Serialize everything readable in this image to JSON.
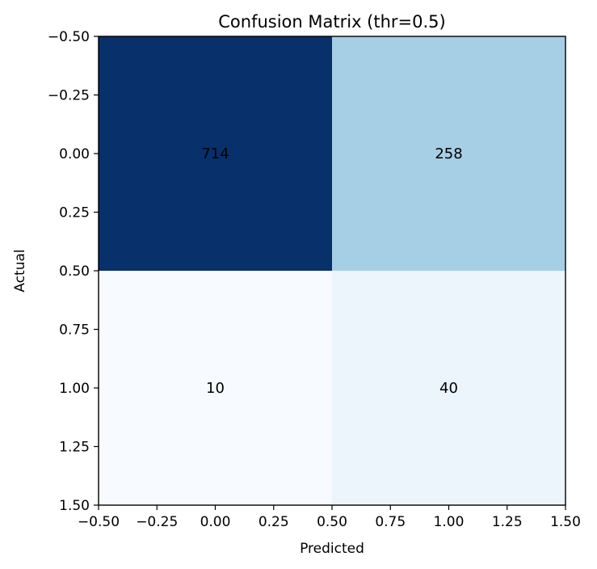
{
  "chart_data": {
    "type": "heatmap",
    "title": "Confusion Matrix (thr=0.5)",
    "xlabel": "Predicted",
    "ylabel": "Actual",
    "matrix": [
      [
        714,
        258
      ],
      [
        10,
        40
      ]
    ],
    "cell_colors": [
      [
        "#08306b",
        "#a6cee4"
      ],
      [
        "#f7fbff",
        "#ecf4fc"
      ]
    ],
    "xlim": [
      -0.5,
      1.5
    ],
    "ylim": [
      -0.5,
      1.5
    ],
    "y_inverted": true,
    "xticks": [
      "−0.50",
      "−0.25",
      "0.00",
      "0.25",
      "0.50",
      "0.75",
      "1.00",
      "1.25",
      "1.50"
    ],
    "yticks": [
      "−0.50",
      "−0.25",
      "0.00",
      "0.25",
      "0.50",
      "0.75",
      "1.00",
      "1.25",
      "1.50"
    ],
    "grid": false,
    "colormap": "Blues"
  }
}
